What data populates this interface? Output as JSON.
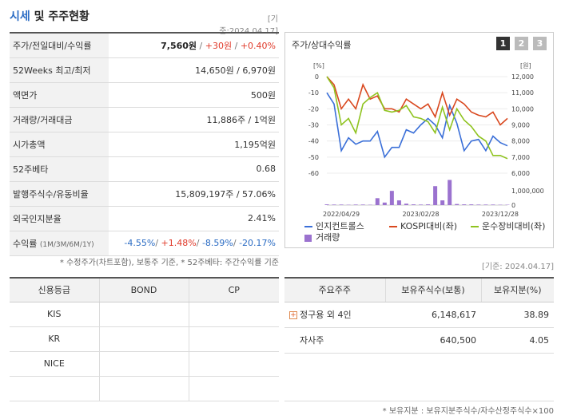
{
  "header": {
    "title_accent": "시세",
    "title_rest": " 및 주주현황",
    "date_stamp": "[기준:2024.04.17]"
  },
  "quote": {
    "rows": {
      "price": {
        "label": "주가/전일대비/수익률",
        "price": "7,560원",
        "change": "+30원",
        "rate": "+0.40%"
      },
      "week52": {
        "label": "52Weeks 최고/최저",
        "value": "14,650원 / 6,970원"
      },
      "par": {
        "label": "액면가",
        "value": "500원"
      },
      "volume": {
        "label": "거래량/거래대금",
        "value": "11,886주 / 1억원"
      },
      "mcap": {
        "label": "시가총액",
        "value": "1,195억원"
      },
      "beta": {
        "label": "52주베타",
        "value": "0.68"
      },
      "shares": {
        "label": "발행주식수/유동비율",
        "value": "15,809,197주 / 57.06%"
      },
      "foreign": {
        "label": "외국인지분율",
        "value": "2.41%"
      },
      "returns": {
        "label": "수익률",
        "label_sub": "(1M/3M/6M/1Y)",
        "r1m": "-4.55%",
        "r3m": "+1.48%",
        "r6m": "-8.59%",
        "r1y": "-20.17%"
      }
    },
    "note": "* 수정주가(차트포함), 보통주 기준, * 52주베타: 주간수익률 기준"
  },
  "chart_panel": {
    "title": "주가/상대수익률",
    "tabs": [
      "1",
      "2",
      "3"
    ],
    "active_tab": "1"
  },
  "chart_data": {
    "type": "line",
    "left_axis_unit": "[%]",
    "right_axis_unit": "[원]",
    "left_ticks": [
      0,
      -10,
      -20,
      -30,
      -40,
      -50,
      -60
    ],
    "right_ticks": [
      "12,000",
      "11,000",
      "10,000",
      "9,000",
      "8,000",
      "7,000",
      "6,000"
    ],
    "left_ylim": [
      -60,
      0
    ],
    "right_ylim": [
      6000,
      12000
    ],
    "volume_ticks": [
      "1,000,000",
      "0"
    ],
    "x_tick_labels": [
      "2022/04/29",
      "2023/02/28",
      "2023/12/28"
    ],
    "x_tick_positions": [
      2,
      13,
      24
    ],
    "series": [
      {
        "name": "인지컨트롤스",
        "color": "#3a6fd8",
        "axis": "left",
        "values": [
          -10,
          -17,
          -46,
          -38,
          -42,
          -40,
          -40,
          -34,
          -50,
          -44,
          -44,
          -33,
          -35,
          -30,
          -26,
          -30,
          -38,
          -18,
          -29,
          -46,
          -40,
          -39,
          -46,
          -37,
          -41,
          -43
        ]
      },
      {
        "name": "KOSPI대비(좌)",
        "color": "#d9481f",
        "axis": "left",
        "values": [
          0,
          -5,
          -20,
          -14,
          -20,
          -5,
          -14,
          -12,
          -20,
          -20,
          -22,
          -14,
          -17,
          -20,
          -17,
          -25,
          -10,
          -24,
          -14,
          -17,
          -22,
          -24,
          -25,
          -22,
          -30,
          -26
        ]
      },
      {
        "name": "운수장비대비(좌)",
        "color": "#8fc31f",
        "axis": "left",
        "values": [
          0,
          -7,
          -30,
          -26,
          -35,
          -17,
          -13,
          -10,
          -21,
          -22,
          -21,
          -18,
          -25,
          -26,
          -28,
          -35,
          -19,
          -33,
          -20,
          -27,
          -31,
          -37,
          -40,
          -49,
          -49,
          -51
        ]
      },
      {
        "name": "거래량",
        "color": "#9b72cf",
        "axis": "volume",
        "type": "bar",
        "values": [
          40000,
          30000,
          30000,
          20000,
          30000,
          30000,
          20000,
          380000,
          140000,
          780000,
          260000,
          80000,
          40000,
          30000,
          40000,
          1040000,
          260000,
          1380000,
          60000,
          40000,
          40000,
          30000,
          30000,
          30000,
          20000,
          20000
        ]
      }
    ],
    "volume_ylim": [
      0,
      1400000
    ]
  },
  "credit": {
    "date_stamp": "[기준: 2024.04.17]",
    "headers": [
      "신용등급",
      "BOND",
      "CP"
    ],
    "rows": [
      [
        "KIS",
        "",
        ""
      ],
      [
        "KR",
        "",
        ""
      ],
      [
        "NICE",
        "",
        ""
      ],
      [
        "",
        "",
        ""
      ]
    ]
  },
  "holders": {
    "headers": [
      "주요주주",
      "보유주식수(보통)",
      "보유지분(%)"
    ],
    "rows": [
      {
        "name": "정구용 외 4인",
        "shares": "6,148,617",
        "pct": "38.89",
        "expand": "+"
      },
      {
        "name": "자사주",
        "shares": "640,500",
        "pct": "4.05",
        "expand": ""
      }
    ],
    "note": "* 보유지분 : 보유지분주식수/자수산정주식수×100"
  }
}
